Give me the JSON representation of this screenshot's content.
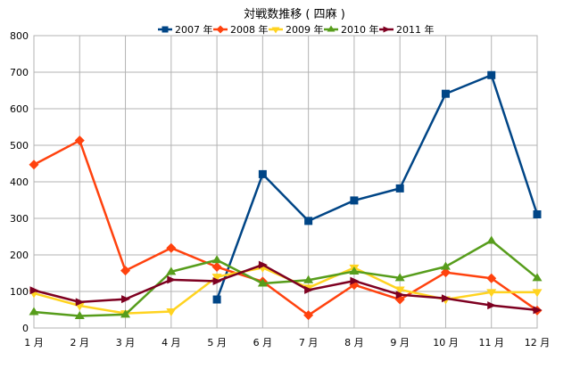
{
  "chart_data": {
    "type": "line",
    "title": "対戦数推移 ( 四麻 )",
    "xlabel": "",
    "ylabel": "",
    "categories": [
      "1 月",
      "2 月",
      "3 月",
      "4 月",
      "5 月",
      "6 月",
      "7 月",
      "8 月",
      "9 月",
      "10 月",
      "11 月",
      "12 月"
    ],
    "ylim": [
      0,
      800
    ],
    "yticks": [
      0,
      100,
      200,
      300,
      400,
      500,
      600,
      700,
      800
    ],
    "grid": true,
    "legend_position": "top",
    "series": [
      {
        "name": "2007 年",
        "color": "#004586",
        "marker": "square",
        "values": [
          null,
          null,
          null,
          null,
          78,
          421,
          293,
          349,
          382,
          641,
          692,
          311
        ]
      },
      {
        "name": "2008 年",
        "color": "#ff420e",
        "marker": "diamond",
        "values": [
          447,
          513,
          157,
          219,
          167,
          127,
          35,
          118,
          78,
          152,
          136,
          48
        ]
      },
      {
        "name": "2009 年",
        "color": "#ffd320",
        "marker": "triangle-down",
        "values": [
          95,
          61,
          40,
          45,
          140,
          165,
          110,
          165,
          105,
          78,
          98,
          98
        ]
      },
      {
        "name": "2010 年",
        "color": "#579d1c",
        "marker": "triangle-up",
        "values": [
          44,
          33,
          37,
          154,
          186,
          122,
          131,
          155,
          137,
          168,
          239,
          137
        ]
      },
      {
        "name": "2011 年",
        "color": "#7e0021",
        "marker": "arrow-right",
        "values": [
          103,
          71,
          79,
          132,
          128,
          173,
          104,
          129,
          91,
          81,
          62,
          49
        ]
      }
    ]
  }
}
